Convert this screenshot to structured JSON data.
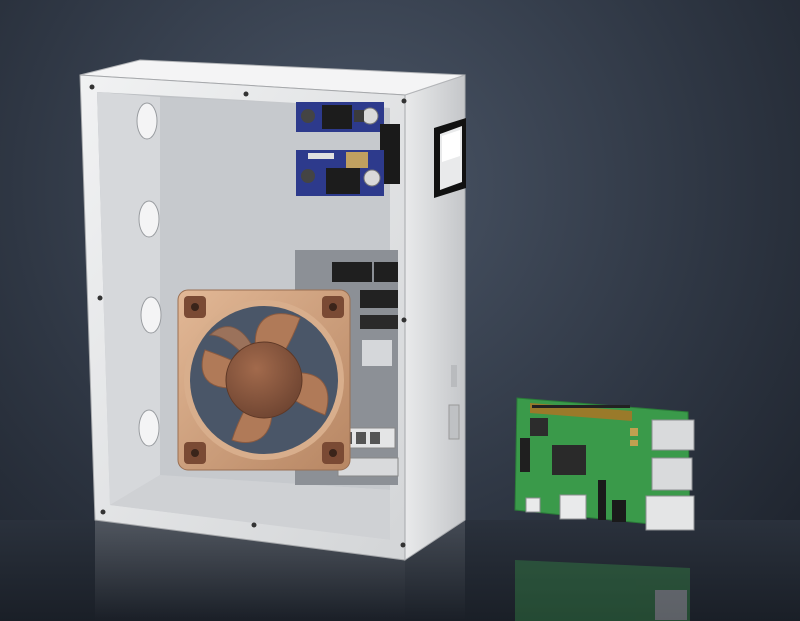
{
  "scene": {
    "background_color": "#323a47",
    "enclosure_color": "#e4e5e6",
    "fan_color": "#c99a78",
    "board_color": "#3a9a4a",
    "items": [
      "enclosure-box",
      "cooling-fan",
      "buck-converter",
      "rocker-switch",
      "control-board",
      "raspberry-pi-board"
    ]
  }
}
